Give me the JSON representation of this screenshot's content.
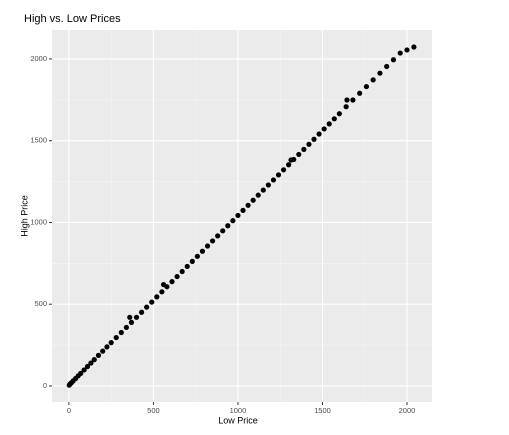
{
  "chart_data": {
    "type": "scatter",
    "title": "High vs. Low Prices",
    "x_label": "Low Price",
    "y_label": "High Price",
    "x": [
      2,
      8,
      15,
      25,
      40,
      55,
      70,
      90,
      110,
      130,
      150,
      175,
      200,
      225,
      250,
      280,
      310,
      340,
      370,
      400,
      430,
      460,
      490,
      520,
      550,
      580,
      610,
      640,
      670,
      700,
      730,
      760,
      790,
      820,
      850,
      880,
      910,
      940,
      970,
      1000,
      1030,
      1060,
      1090,
      1120,
      1150,
      1180,
      1210,
      1240,
      1270,
      1300,
      1330,
      1360,
      1390,
      1420,
      1450,
      1480,
      1510,
      1540,
      1570,
      1600,
      1640,
      1680,
      1720,
      1760,
      1800,
      1840,
      1880,
      1920,
      1960,
      2000,
      2041,
      1314,
      1645,
      360,
      560
    ],
    "y": [
      5,
      13,
      20,
      31,
      46,
      62,
      77,
      98,
      119,
      140,
      161,
      187,
      213,
      239,
      265,
      296,
      327,
      358,
      389,
      420,
      451,
      482,
      513,
      545,
      576,
      607,
      638,
      669,
      700,
      731,
      762,
      793,
      824,
      856,
      887,
      918,
      949,
      980,
      1011,
      1043,
      1074,
      1105,
      1136,
      1167,
      1198,
      1229,
      1260,
      1291,
      1322,
      1353,
      1385,
      1416,
      1447,
      1478,
      1509,
      1541,
      1572,
      1603,
      1634,
      1665,
      1708,
      1749,
      1790,
      1831,
      1872,
      1913,
      1954,
      1995,
      2036,
      2055,
      2073,
      1382,
      1749,
      420,
      620
    ],
    "color": "#000000",
    "xlim": [
      -100,
      2148
    ],
    "ylim": [
      -98,
      2177
    ],
    "xticks": [
      0,
      500,
      1000,
      1500,
      2000
    ],
    "yticks": [
      0,
      500,
      1000,
      1500,
      2000
    ],
    "x_minor_ticks": [
      250,
      750,
      1250,
      1750
    ],
    "y_minor_ticks": [
      250,
      750,
      1250,
      1750
    ],
    "grid": true
  }
}
